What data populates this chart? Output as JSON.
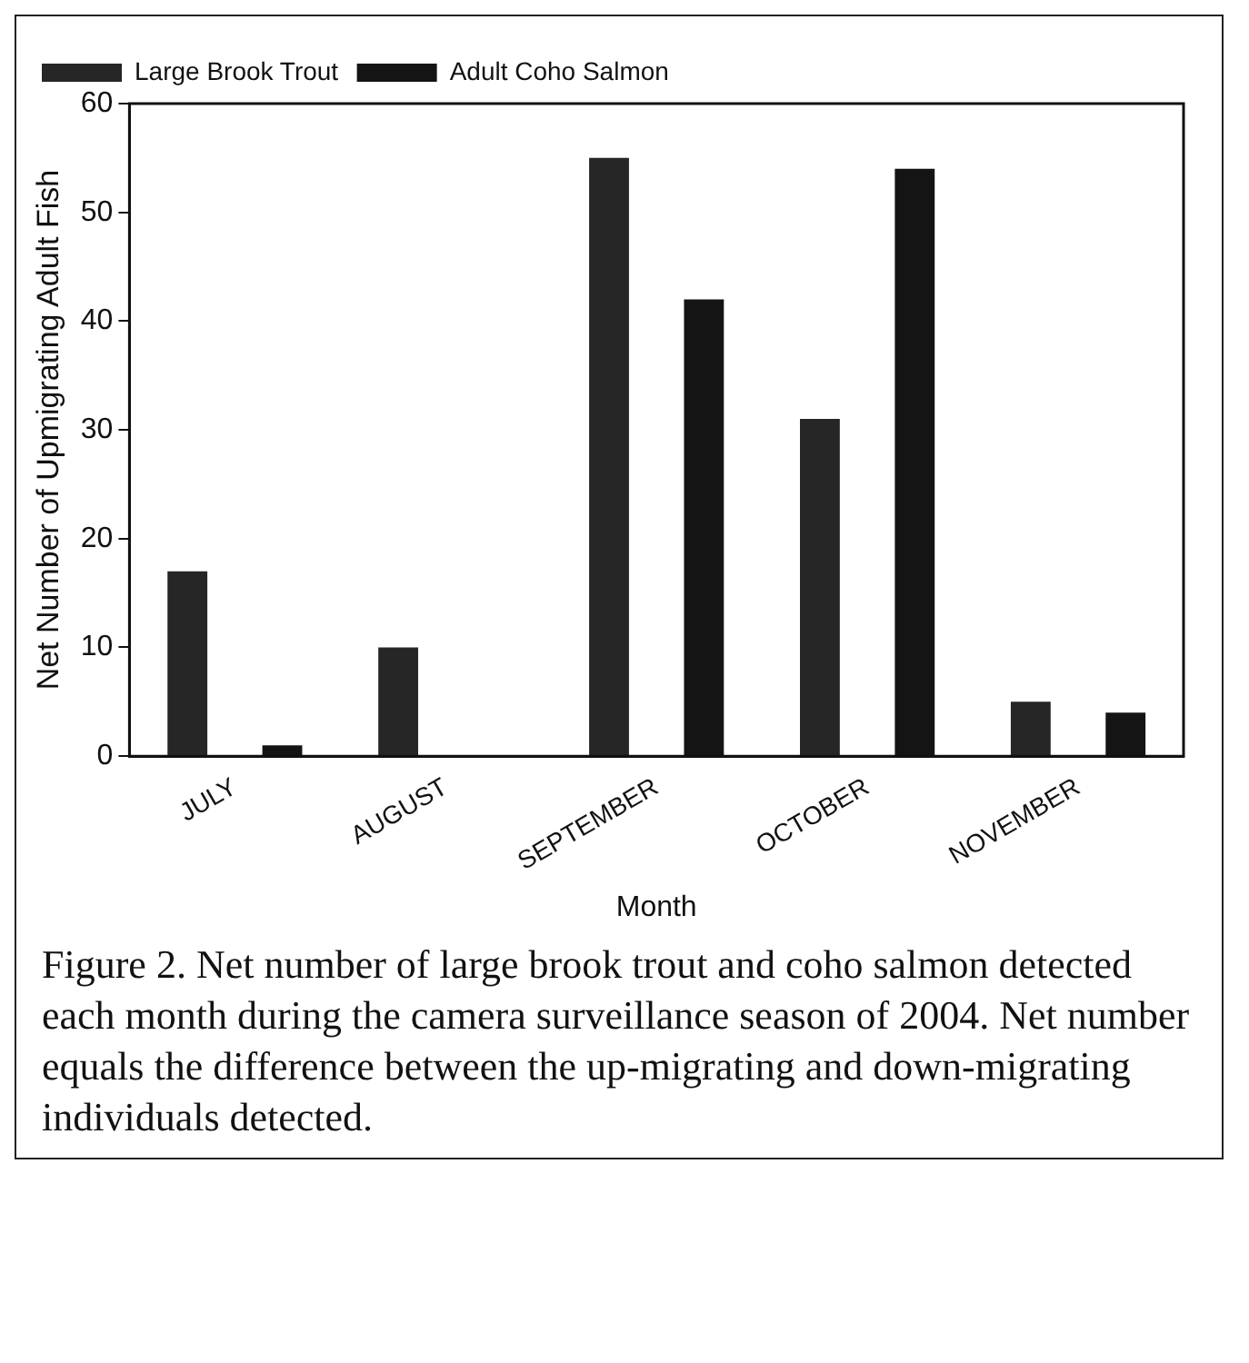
{
  "chart_data": {
    "type": "bar",
    "xlabel": "Month",
    "ylabel": "Net Number of Upmigrating Adult Fish",
    "categories": [
      "JULY",
      "AUGUST",
      "SEPTEMBER",
      "OCTOBER",
      "NOVEMBER"
    ],
    "series": [
      {
        "name": "Large Brook Trout",
        "color": "#262626",
        "values": [
          17,
          10,
          55,
          31,
          5
        ]
      },
      {
        "name": "Adult Coho Salmon",
        "color": "#141414",
        "values": [
          1,
          0,
          42,
          54,
          4
        ]
      }
    ],
    "ylim": [
      0,
      60
    ],
    "yticks": [
      0,
      10,
      20,
      30,
      40,
      50,
      60
    ],
    "grid": false,
    "legend": "top left",
    "annotations": [
      "Figure 2.  Net number of large brook trout and coho salmon detected each month during the camera surveillance season of 2004.  Net number equals the difference between the up-migrating and down-migrating individuals detected."
    ]
  }
}
